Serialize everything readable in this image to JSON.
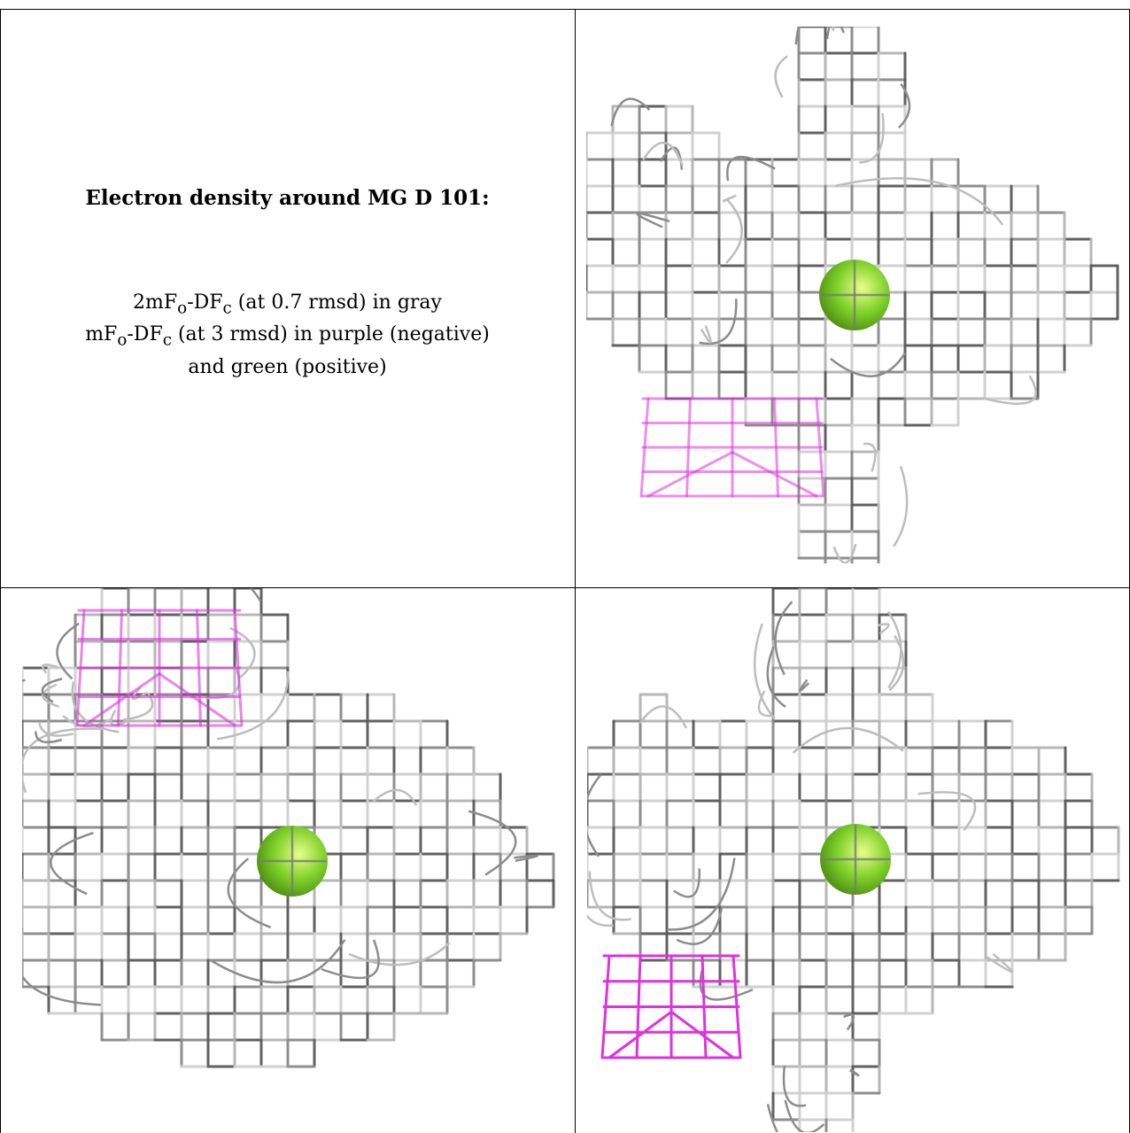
{
  "title": "Electron density around MG D 101:",
  "legend": {
    "line1_prefix": "2mF",
    "line1_sub1": "o",
    "line1_mid": "-DF",
    "line1_sub2": "c",
    "line1_suffix": " (at 0.7 rmsd) in gray",
    "line2_prefix": "mF",
    "line2_sub1": "o",
    "line2_mid": "-DF",
    "line2_sub2": "c",
    "line2_suffix": " (at 3 rmsd) in purple (negative)",
    "line3": "and green (positive)"
  },
  "colors": {
    "map_2fofc": "#9a9a9a",
    "map_fofc_negative": "#dd33dd",
    "map_fofc_positive": "#7fd12a",
    "atom": "#7fd12a"
  },
  "views": [
    {
      "name": "top-right",
      "atom": "green-sphere",
      "has_negative_blob": true
    },
    {
      "name": "bottom-left",
      "atom": "green-sphere",
      "has_negative_blob": true
    },
    {
      "name": "bottom-right",
      "atom": "green-sphere",
      "has_negative_blob": true
    }
  ]
}
